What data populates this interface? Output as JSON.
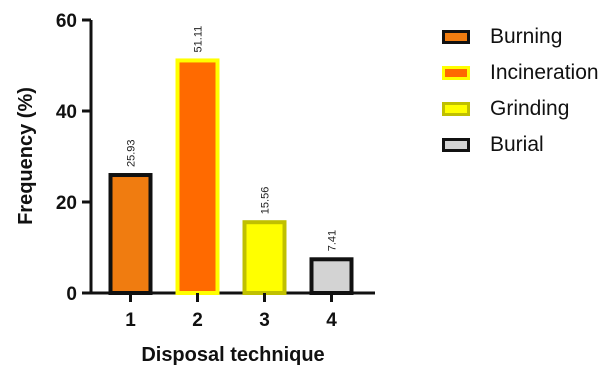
{
  "chart_data": {
    "type": "bar",
    "categories": [
      "1",
      "2",
      "3",
      "4"
    ],
    "values": [
      25.93,
      51.11,
      15.56,
      7.41
    ],
    "data_labels": [
      "25.93",
      "51.11",
      "15.56",
      "7.41"
    ],
    "xlabel": "Disposal technique",
    "ylabel": "Frequency (%)",
    "ylim": [
      0,
      60
    ],
    "yticks": [
      "0",
      "20",
      "40",
      "60"
    ],
    "grid": false,
    "legend_position": "right",
    "legend": [
      {
        "label": "Burning",
        "fill": "#f07c10",
        "stroke": "#111111"
      },
      {
        "label": "Incineration",
        "fill": "#ff6a00",
        "stroke": "#ffff00"
      },
      {
        "label": "Grinding",
        "fill": "#ffff00",
        "stroke": "#c0c000"
      },
      {
        "label": "Burial",
        "fill": "#d3d3d3",
        "stroke": "#111111"
      }
    ],
    "bar_styles": [
      {
        "fill": "#f07c10",
        "stroke": "#111111"
      },
      {
        "fill": "#ff6a00",
        "stroke": "#ffff00"
      },
      {
        "fill": "#ffff00",
        "stroke": "#c0c000"
      },
      {
        "fill": "#d3d3d3",
        "stroke": "#111111"
      }
    ]
  }
}
